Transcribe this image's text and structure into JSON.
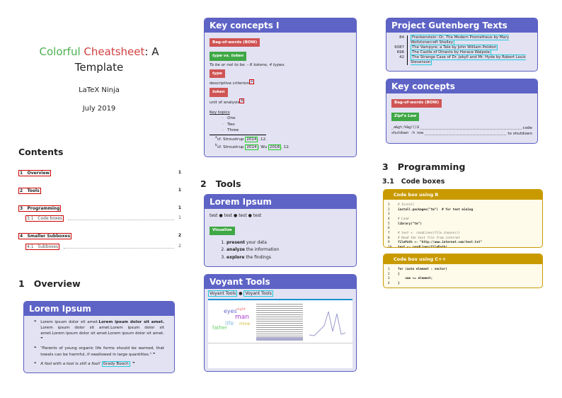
{
  "title": {
    "word1": "Colorful",
    "word2": "Cheatsheet",
    "rest": ": A",
    "line2": "Template",
    "author": "LaTeX Ninja",
    "date": "July 2019"
  },
  "toc": {
    "heading": "Contents",
    "entries": [
      {
        "num": "1",
        "label": "Overview",
        "page": "1"
      },
      {
        "num": "2",
        "label": "Tools",
        "page": "1"
      },
      {
        "num": "3",
        "label": "Programming",
        "page": "1"
      },
      {
        "num": "3.1",
        "label": "Code boxes",
        "page": "1"
      },
      {
        "num": "4",
        "label": "Smaller Subboxes",
        "page": "2"
      },
      {
        "num": "4.1",
        "label": "Subboxes",
        "page": "2"
      }
    ]
  },
  "overview": {
    "heading": "1   Overview",
    "box_title": "Lorem Ipsum",
    "q1a": "Lorem ipsum dolor sit amet.",
    "q1b": "Lorem ipsum dolor sit amet.",
    "q1c": " Lorem ipsum dolor sit amet.Lorem ipsum dolor sit amet.Lorem ipsum dolor sit amet.Lorem ipsum dolor sit amet.",
    "q2": "\"Parents of young organic life forms should be warned, that towels can be harmful, if swallowed in large quantities.\"",
    "q3": "A fool with a tool is still a fool!",
    "q3_author": "Grady Booch"
  },
  "key1": {
    "title": "Key concepts I",
    "bow": "Bag-of-words (BOW)",
    "tvt": "type vs. token",
    "example": "To be or not to be. - 6 tokens, 4 types.",
    "type": "type",
    "type_desc": "descriptive criterion",
    "type_fn": "a",
    "token": "token",
    "token_desc": "unit of analysis",
    "token_fn": "b",
    "topics_label": "Key topics",
    "topics": [
      "One",
      "Two",
      "Three"
    ],
    "fn_a": "cf. Stroustrup",
    "fn_a_year": "2014",
    "fn_a_page": ", 12.",
    "fn_b": "cf. Stroustrup",
    "fn_b_year": "2014",
    "fn_b_mid": "; Wu",
    "fn_b_year2": "2018",
    "fn_b_page": ", 12."
  },
  "tools": {
    "heading": "2   Tools",
    "box_title": "Lorem Ipsum",
    "tests": [
      "test",
      "test",
      "test",
      "test"
    ],
    "visualize": "Visualize",
    "steps": [
      {
        "b": "present",
        "t": " your data"
      },
      {
        "b": "analyze",
        "t": " the information"
      },
      {
        "b": "explore",
        "t": " the findings"
      }
    ]
  },
  "voyant": {
    "title": "Voyant Tools",
    "link1": "Voyant Tools",
    "link2": "Voyant Tools",
    "cloud_words": [
      "eyes",
      "man",
      "life",
      "father",
      "night",
      "mine"
    ]
  },
  "gutenberg": {
    "title": "Project Gutenberg Texts",
    "rows": [
      {
        "id": "84",
        "text": "Frankenstein; Or, The Modern Prometheus by Mary Wollstonecraft Shelley"
      },
      {
        "id": "6087",
        "text": "The Vampyre; a Tale by John William Polidori"
      },
      {
        "id": "696",
        "text": "The Castle of Otranto by Horace Walpole"
      },
      {
        "id": "42",
        "text": "The Strange Case of Dr. Jekyll and Mr. Hyde by Robert Louis Stevenson"
      }
    ]
  },
  "key2": {
    "title": "Key concepts",
    "bow": "Bag-of-words (BOW)",
    "zipf": "Zipf's Law",
    "rows": [
      {
        "k": "_a&gt;%&g/()$",
        "v": "code"
      },
      {
        "k": "shutdown -h now",
        "v": "to shutdown"
      }
    ]
  },
  "programming": {
    "heading": "3   Programming",
    "sub": "3.1   Code boxes",
    "r_title": "Code box using R",
    "r_lines": [
      "# Install",
      "install.packages(\"tm\")  # for text mining",
      "",
      "# Load",
      "library(\"tm\")",
      "",
      "# text <- readLines(file.choose())",
      "# Read the text file from internet",
      "filePath <- \"http://www.internet.com/text.txt\"",
      "text <- readLines(filePath)"
    ],
    "c_title": "Code box using C++",
    "c_lines": [
      "for (auto element : vector)",
      "{",
      "    sum += element;",
      "}"
    ]
  }
}
